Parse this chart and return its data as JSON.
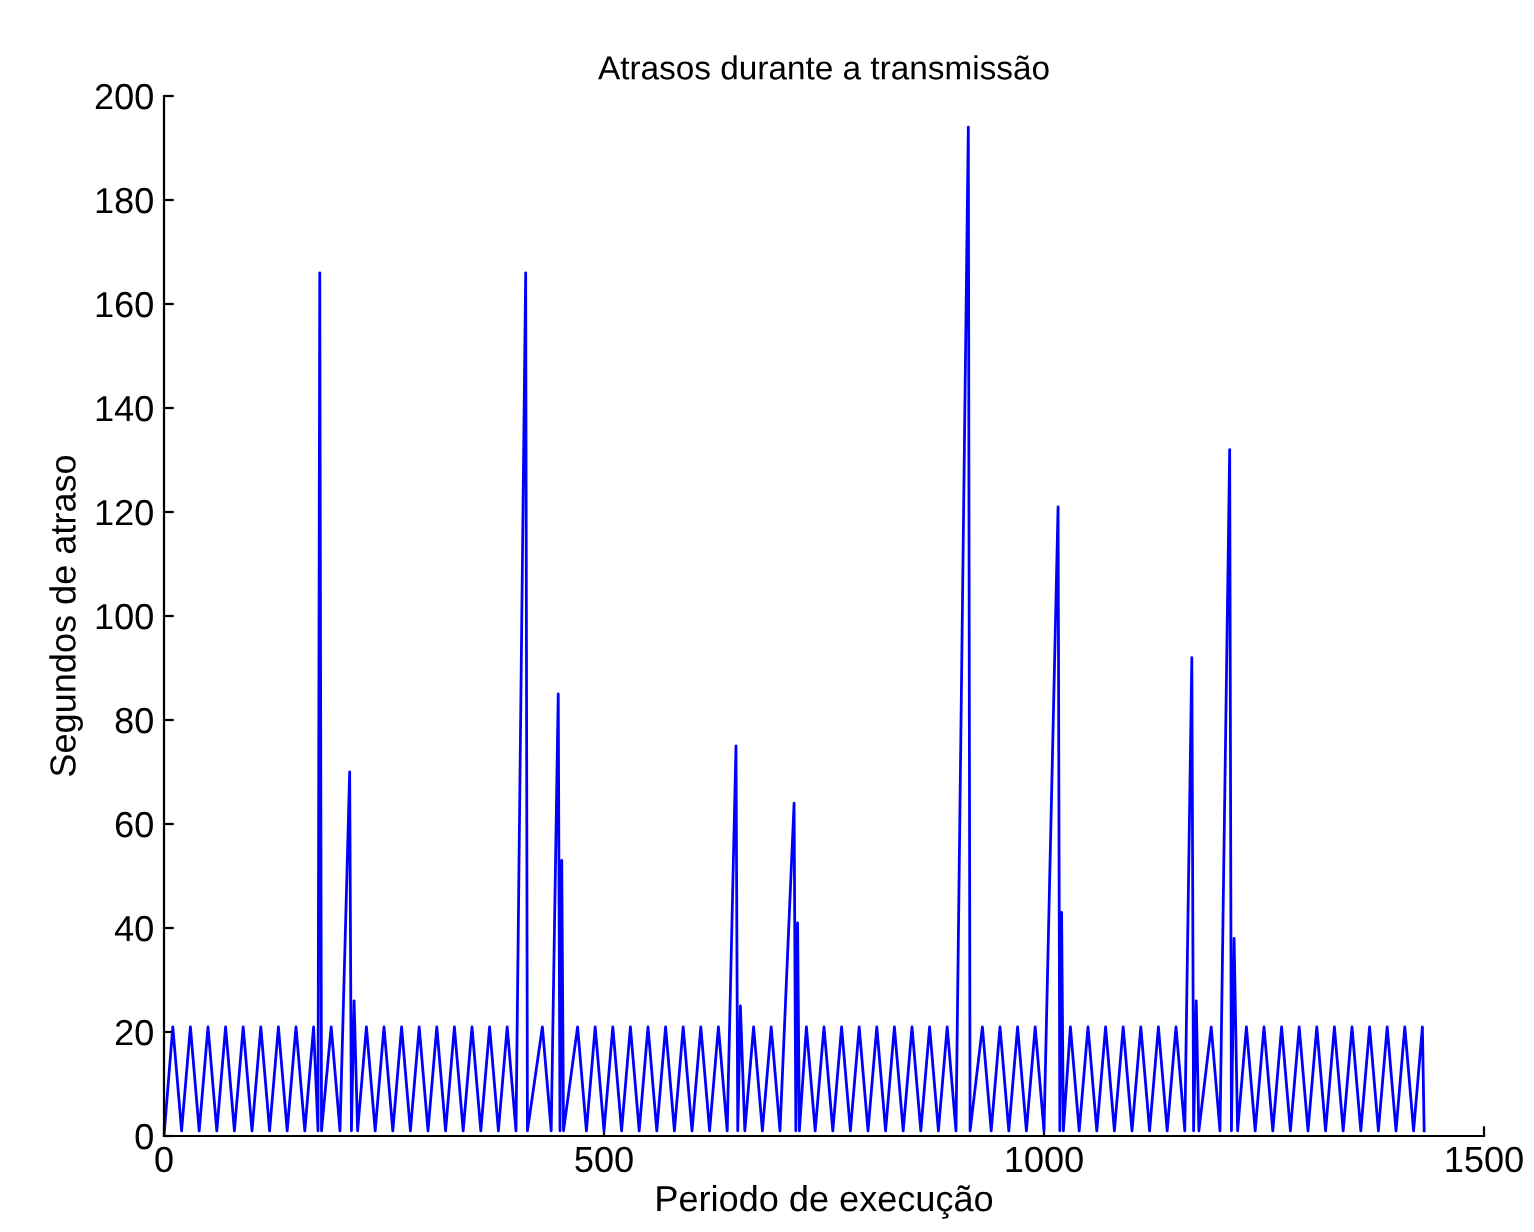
{
  "chart_data": {
    "type": "line",
    "title": "Atrasos durante a transmissão",
    "xlabel": "Periodo de execução",
    "ylabel": "Segundos de atraso",
    "series": [
      {
        "color": "#0000ff",
        "x": [
          0,
          10,
          20,
          30,
          40,
          50,
          60,
          70,
          80,
          90,
          100,
          110,
          120,
          130,
          140,
          150,
          160,
          170,
          175,
          177,
          179,
          190,
          200,
          211,
          213,
          216,
          220,
          230,
          240,
          250,
          260,
          270,
          280,
          290,
          300,
          310,
          320,
          330,
          340,
          350,
          360,
          370,
          380,
          390,
          400,
          411,
          413,
          430,
          440,
          448,
          450,
          452,
          454,
          470,
          480,
          490,
          500,
          510,
          520,
          530,
          540,
          550,
          560,
          570,
          580,
          590,
          600,
          610,
          620,
          630,
          640,
          650,
          652,
          655,
          660,
          670,
          680,
          690,
          700,
          716,
          718,
          720,
          722,
          730,
          740,
          750,
          760,
          770,
          780,
          790,
          800,
          810,
          820,
          830,
          840,
          850,
          860,
          870,
          880,
          890,
          900,
          914,
          916,
          930,
          940,
          950,
          960,
          970,
          980,
          990,
          1000,
          1016,
          1018,
          1020,
          1022,
          1030,
          1040,
          1050,
          1060,
          1070,
          1080,
          1090,
          1100,
          1110,
          1120,
          1130,
          1140,
          1150,
          1160,
          1168,
          1170,
          1173,
          1176,
          1190,
          1200,
          1211,
          1213,
          1216,
          1220,
          1230,
          1240,
          1250,
          1260,
          1270,
          1280,
          1290,
          1300,
          1310,
          1320,
          1330,
          1340,
          1350,
          1360,
          1370,
          1380,
          1390,
          1400,
          1410,
          1420,
          1430,
          1432
        ],
        "values": [
          0,
          21,
          1,
          21,
          1,
          21,
          1,
          21,
          1,
          21,
          1,
          21,
          1,
          21,
          1,
          21,
          1,
          21,
          1,
          166,
          1,
          21,
          1,
          70,
          1,
          26,
          1,
          21,
          1,
          21,
          1,
          21,
          1,
          21,
          1,
          21,
          1,
          21,
          1,
          21,
          1,
          21,
          1,
          21,
          1,
          166,
          1,
          21,
          1,
          85,
          1,
          53,
          1,
          21,
          1,
          21,
          1,
          21,
          1,
          21,
          1,
          21,
          1,
          21,
          1,
          21,
          1,
          21,
          1,
          21,
          1,
          75,
          1,
          25,
          1,
          21,
          1,
          21,
          1,
          64,
          1,
          41,
          1,
          21,
          1,
          21,
          1,
          21,
          1,
          21,
          1,
          21,
          1,
          21,
          1,
          21,
          1,
          21,
          1,
          21,
          1,
          194,
          1,
          21,
          1,
          21,
          1,
          21,
          1,
          21,
          1,
          121,
          1,
          43,
          1,
          21,
          1,
          21,
          1,
          21,
          1,
          21,
          1,
          21,
          1,
          21,
          1,
          21,
          1,
          92,
          1,
          26,
          1,
          21,
          1,
          132,
          1,
          38,
          1,
          21,
          1,
          21,
          1,
          21,
          1,
          21,
          1,
          21,
          1,
          21,
          1,
          21,
          1,
          21,
          1,
          21,
          1,
          21,
          1,
          21,
          1
        ]
      }
    ],
    "xlim": [
      0,
      1500
    ],
    "xticks": [
      0,
      500,
      1000,
      1500
    ],
    "ylim": [
      0,
      200
    ],
    "yticks": [
      0,
      20,
      40,
      60,
      80,
      100,
      120,
      140,
      160,
      180,
      200
    ],
    "grid": false
  }
}
